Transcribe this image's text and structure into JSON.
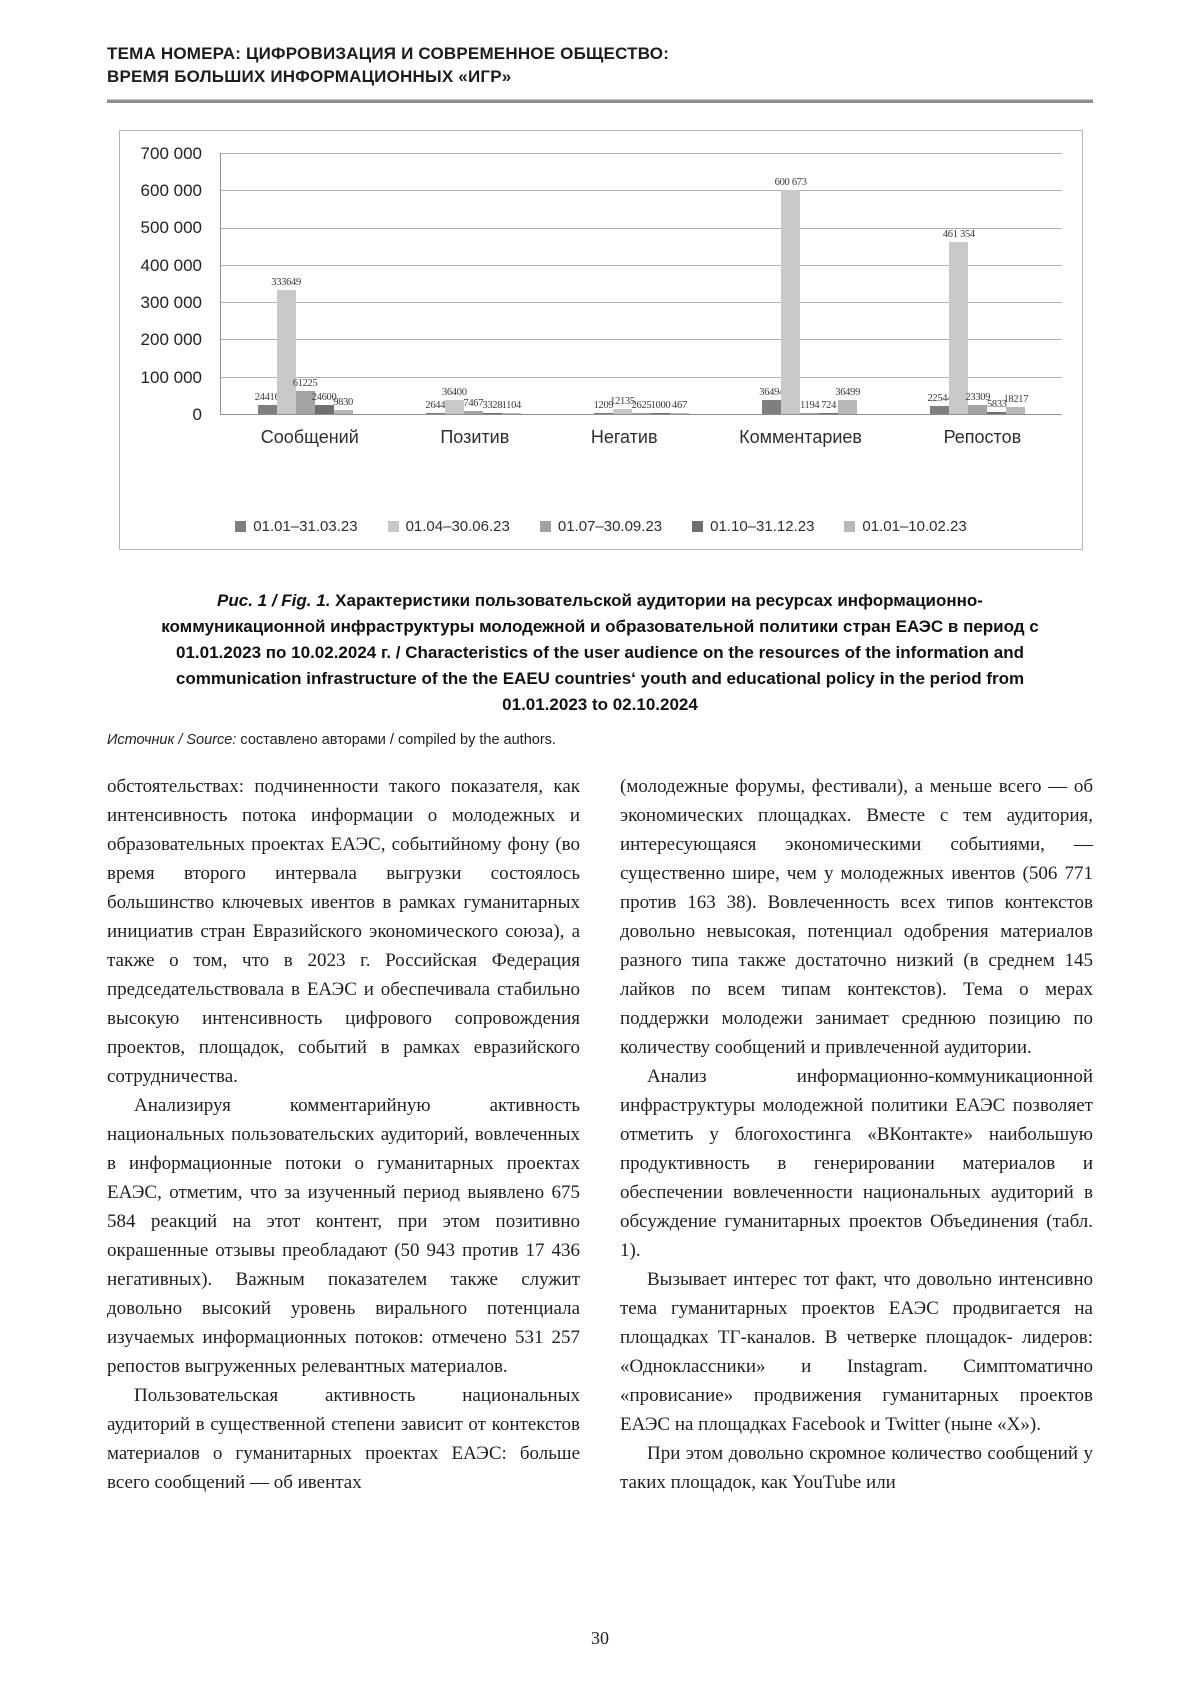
{
  "header": {
    "line1": "ТЕМА НОМЕРА: ЦИФРОВИЗАЦИЯ И СОВРЕМЕННОЕ ОБЩЕСТВО:",
    "line2": "ВРЕМЯ БОЛЬШИХ ИНФОРМАЦИОННЫХ «ИГР»"
  },
  "chart_data": {
    "type": "bar",
    "title": "",
    "categories": [
      "Сообщений",
      "Позитив",
      "Негатив",
      "Комментариев",
      "Репостов"
    ],
    "series": [
      {
        "name": "01.01–31.03.23",
        "color": "#7f7f7f",
        "values": [
          24416,
          2644,
          1209,
          36494,
          22544
        ],
        "labels": [
          "24416",
          "2644",
          "1209",
          "36494",
          "22544"
        ]
      },
      {
        "name": "01.04–30.06.23",
        "color": "#c9c9c9",
        "values": [
          333649,
          36400,
          12135,
          600673,
          461354
        ],
        "labels": [
          "333649",
          "36400",
          "12135",
          "600 673",
          "461 354"
        ]
      },
      {
        "name": "01.07–30.09.23",
        "color": "#a3a3a3",
        "values": [
          61225,
          7467,
          2625,
          1194,
          23309
        ],
        "labels": [
          "61225",
          "7467",
          "2625",
          "1194",
          "23309"
        ]
      },
      {
        "name": "01.10–31.12.23",
        "color": "#6f6f6f",
        "values": [
          24600,
          3328,
          1000,
          724,
          5833
        ],
        "labels": [
          "24600",
          "3328",
          "1000",
          "724",
          "5833"
        ]
      },
      {
        "name": "01.01–10.02.23",
        "color": "#b8b8b8",
        "values": [
          9830,
          1104,
          467,
          36499,
          18217
        ],
        "labels": [
          "9830",
          "1104",
          "467",
          "36499",
          "18217"
        ]
      }
    ],
    "ylim": [
      0,
      700000
    ],
    "yticks": [
      "700 000",
      "600 000",
      "500 000",
      "400 000",
      "300 000",
      "200 000",
      "100 000",
      "0"
    ],
    "grid": true,
    "legend_position": "bottom"
  },
  "caption": {
    "fig_label": "Рис. 1 / Fig. 1.",
    "text": " Характеристики пользовательской аудитории на ресурсах информационно-коммуникационной инфраструктуры молодежной и образовательной политики стран ЕАЭС в период с 01.01.2023 по 10.02.2024 г. / Characteristics of the user audience on the resources of the information and communication infrastructure of the the EAEU countries‘ youth and educational policy in the period from 01.01.2023 to 02.10.2024"
  },
  "source": {
    "label": "Источник / Source:",
    "text": " составлено авторами / compiled by the authors."
  },
  "columns": {
    "left": [
      {
        "text": "обстоятельствах: подчиненности такого показателя, как интенсивность потока информации о молодежных и образовательных проектах ЕАЭС, событийному фону (во время второго интервала выгрузки состоялось большинство ключевых ивентов в рамках гуманитарных инициатив стран Евразийского экономического союза), а также о том, что в 2023 г. Российская Федерация председательствовала в ЕАЭС и обеспечивала стабильно высокую интенсивность цифрового сопровождения проектов, площадок, событий в рамках евразийского сотрудничества."
      },
      {
        "text": "Анализируя комментарийную активность национальных пользовательских аудиторий, вовлеченных в информационные потоки о гуманитарных проектах ЕАЭС, отметим, что за изученный период выявлено 675 584 реакций на этот контент, при этом позитивно окрашенные отзывы преобладают (50 943 против 17 436 негативных). Важным показателем также служит довольно высокий уровень вирального потенциала изучаемых информационных потоков: отмечено 531 257 репостов выгруженных релевантных материалов."
      },
      {
        "text": "Пользовательская активность национальных аудиторий в существенной степени зависит от контекстов материалов о гуманитарных проектах ЕАЭС: больше всего сообщений — об ивентах"
      }
    ],
    "right": [
      {
        "text": "(молодежные форумы, фестивали), а меньше всего — об экономических площадках. Вместе с тем аудитория, интересующаяся экономическими событиями, — существенно шире, чем у молодежных ивентов (506 771 против 163 38). Вовлеченность всех типов контекстов довольно невысокая, потенциал одобрения материалов разного типа также достаточно низкий (в среднем 145 лайков по всем типам контекстов). Тема о мерах поддержки молодежи занимает среднюю позицию по количеству сообщений и привлеченной аудитории."
      },
      {
        "text": "Анализ информационно-коммуникационной инфраструктуры молодежной политики ЕАЭС позволяет отметить у блогохостинга «ВКонтакте» наибольшую продуктивность в генерировании материалов и обеспечении вовлеченности национальных аудиторий в обсуждение гуманитарных проектов Объединения (табл. 1)."
      },
      {
        "text": "Вызывает интерес тот факт, что довольно интенсивно тема гуманитарных проектов ЕАЭС продвигается на площадках ТГ-каналов. В четверке площадок- лидеров: «Одноклассники» и Instagram. Симптоматично «провисание» продвижения гуманитарных проектов ЕАЭС на площадках Facebook и Twitter (ныне «X»)."
      },
      {
        "text": "При этом довольно скромное количество сообщений у таких площадок, как YouTube или"
      }
    ]
  },
  "page": {
    "number": "30"
  }
}
